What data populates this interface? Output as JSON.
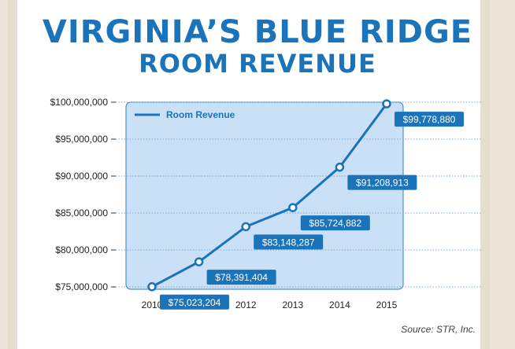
{
  "title": "VIRGINIA’S BLUE RIDGE",
  "subtitle": "ROOM REVENUE",
  "source": "Source: STR, Inc.",
  "colors": {
    "accent": "#1b73b9",
    "plot_bg": "#c9e0f6",
    "label_bg": "#1b73b9"
  },
  "chart_data": {
    "type": "line",
    "x": [
      "2010",
      "2011",
      "2012",
      "2013",
      "2014",
      "2015"
    ],
    "series": [
      {
        "name": "Room Revenue",
        "values": [
          75023204,
          78391404,
          83148287,
          85724882,
          91208913,
          99778880
        ],
        "labels": [
          "$75,023,204",
          "$78,391,404",
          "$83,148,287",
          "$85,724,882",
          "$91,208,913",
          "$99,778,880"
        ]
      }
    ],
    "yticks": [
      75000000,
      80000000,
      85000000,
      90000000,
      95000000,
      100000000
    ],
    "ytick_labels": [
      "$75,000,000",
      "$80,000,000",
      "$85,000,000",
      "$90,000,000",
      "$95,000,000",
      "$100,000,000"
    ],
    "ylim": [
      75000000,
      100000000
    ],
    "grid": true,
    "legend": "top-left"
  }
}
